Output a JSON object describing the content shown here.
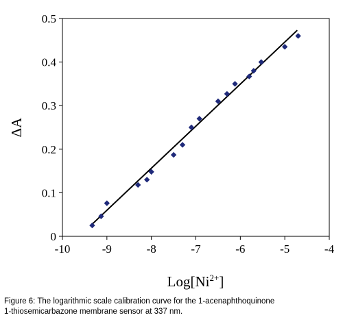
{
  "chart_data": {
    "type": "scatter",
    "title": "",
    "xlabel": "Log[Ni",
    "xlabel_superscript": "2+",
    "xlabel_suffix": "]",
    "ylabel": "ΔA",
    "xlim": [
      -10,
      -4
    ],
    "ylim": [
      0,
      0.5
    ],
    "x_ticks": [
      -10,
      -9,
      -8,
      -7,
      -6,
      -5,
      -4
    ],
    "x_tick_labels": [
      "-10",
      "-9",
      "-8",
      "-7",
      "-6",
      "-5",
      "-4"
    ],
    "y_ticks": [
      0,
      0.1,
      0.2,
      0.3,
      0.4,
      0.5
    ],
    "y_tick_labels": [
      "0",
      "0.1",
      "0.2",
      "0.3",
      "0.4",
      "0.5"
    ],
    "grid": false,
    "legend": false,
    "marker": "diamond",
    "marker_color": "#1f2a7a",
    "line_color": "#000000",
    "series": [
      {
        "points": [
          [
            -9.33,
            0.025
          ],
          [
            -9.13,
            0.046
          ],
          [
            -9.0,
            0.076
          ],
          [
            -8.3,
            0.118
          ],
          [
            -8.1,
            0.13
          ],
          [
            -8.0,
            0.148
          ],
          [
            -7.5,
            0.187
          ],
          [
            -7.3,
            0.21
          ],
          [
            -7.1,
            0.25
          ],
          [
            -6.92,
            0.27
          ],
          [
            -6.5,
            0.31
          ],
          [
            -6.3,
            0.327
          ],
          [
            -6.12,
            0.35
          ],
          [
            -5.8,
            0.367
          ],
          [
            -5.7,
            0.38
          ],
          [
            -5.53,
            0.4
          ],
          [
            -5.0,
            0.435
          ],
          [
            -4.7,
            0.46
          ]
        ]
      }
    ],
    "fit_line": {
      "x": [
        -9.33,
        -4.72
      ],
      "y": [
        0.028,
        0.473
      ]
    }
  },
  "caption": {
    "line1": "Figure 6: The logarithmic scale calibration curve for the 1-acenaphthoquinone",
    "line2": "1-thiosemicarbazone membrane sensor at 337 nm."
  }
}
